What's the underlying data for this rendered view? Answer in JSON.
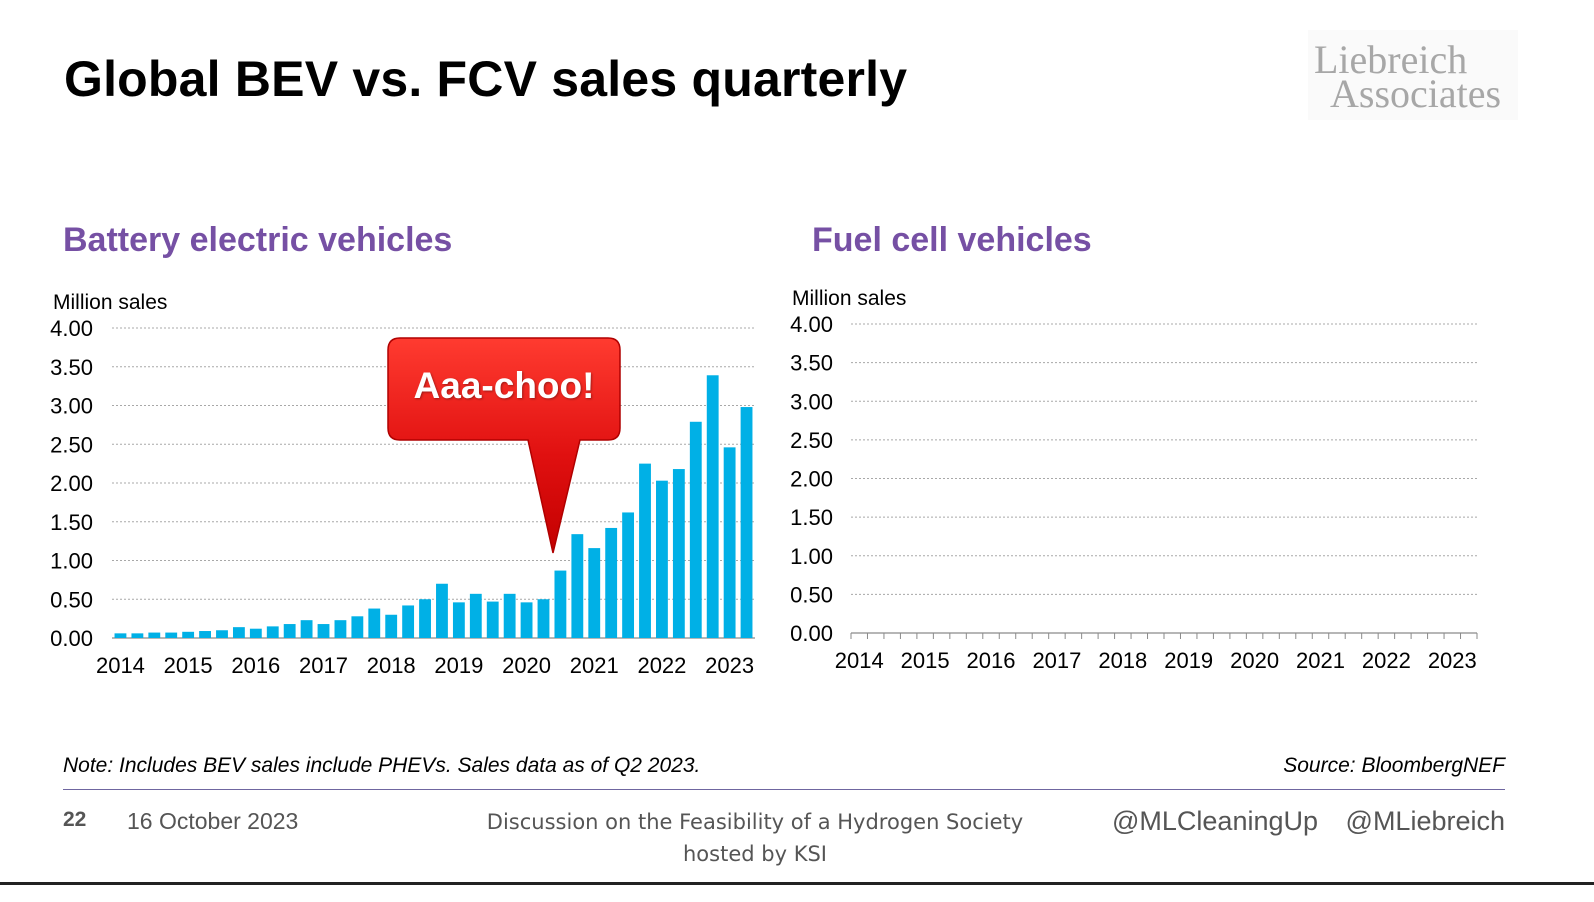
{
  "slide": {
    "title": "Global BEV vs. FCV sales quarterly",
    "logo": {
      "line1": "Liebreich",
      "line2": "Associates"
    },
    "note": "Note: Includes BEV sales include PHEVs. Sales data as of Q2 2023.",
    "source": "Source: BloombergNEF",
    "page_number": "22",
    "date": "16 October 2023",
    "footer_line1": "Discussion on the Feasibility of a Hydrogen Society",
    "footer_line2": "hosted by KSI",
    "handle1": "@MLCleaningUp",
    "handle2": "@MLiebreich",
    "callout": "Aaa-choo!",
    "colors": {
      "accent": "#7650a4",
      "bar": "#00b0e6",
      "callout": "#e01010"
    }
  },
  "chart_data": [
    {
      "type": "bar",
      "title": "Battery electric vehicles",
      "ylabel": "Million sales",
      "xlabel": "",
      "ylim": [
        0,
        4
      ],
      "yticks": [
        "0.00",
        "0.50",
        "1.00",
        "1.50",
        "2.00",
        "2.50",
        "3.00",
        "3.50",
        "4.00"
      ],
      "year_labels": [
        "2014",
        "2015",
        "2016",
        "2017",
        "2018",
        "2019",
        "2020",
        "2021",
        "2022",
        "2023"
      ],
      "grid": true,
      "series": [
        {
          "name": "BEV sales",
          "values": [
            0.06,
            0.06,
            0.07,
            0.07,
            0.08,
            0.09,
            0.1,
            0.14,
            0.12,
            0.15,
            0.18,
            0.23,
            0.18,
            0.23,
            0.28,
            0.38,
            0.3,
            0.42,
            0.5,
            0.7,
            0.46,
            0.57,
            0.47,
            0.57,
            0.46,
            0.5,
            0.87,
            1.34,
            1.16,
            1.42,
            1.62,
            2.25,
            2.03,
            2.18,
            2.79,
            3.39,
            2.46,
            2.98
          ]
        }
      ]
    },
    {
      "type": "bar",
      "title": "Fuel cell vehicles",
      "ylabel": "Million sales",
      "xlabel": "",
      "ylim": [
        0,
        4
      ],
      "yticks": [
        "0.00",
        "0.50",
        "1.00",
        "1.50",
        "2.00",
        "2.50",
        "3.00",
        "3.50",
        "4.00"
      ],
      "year_labels": [
        "2014",
        "2015",
        "2016",
        "2017",
        "2018",
        "2019",
        "2020",
        "2021",
        "2022",
        "2023"
      ],
      "grid": true,
      "series": [
        {
          "name": "FCV sales",
          "values": [
            0.0,
            0.0,
            0.0,
            0.0,
            0.0,
            0.0,
            0.0,
            0.0,
            0.0,
            0.0,
            0.0,
            0.0,
            0.0,
            0.0,
            0.0,
            0.0,
            0.0,
            0.0,
            0.0,
            0.0,
            0.0,
            0.0,
            0.0,
            0.0,
            0.0,
            0.0,
            0.0,
            0.0,
            0.0,
            0.0,
            0.0,
            0.0,
            0.0,
            0.0,
            0.0,
            0.0,
            0.0,
            0.0
          ]
        }
      ]
    }
  ]
}
